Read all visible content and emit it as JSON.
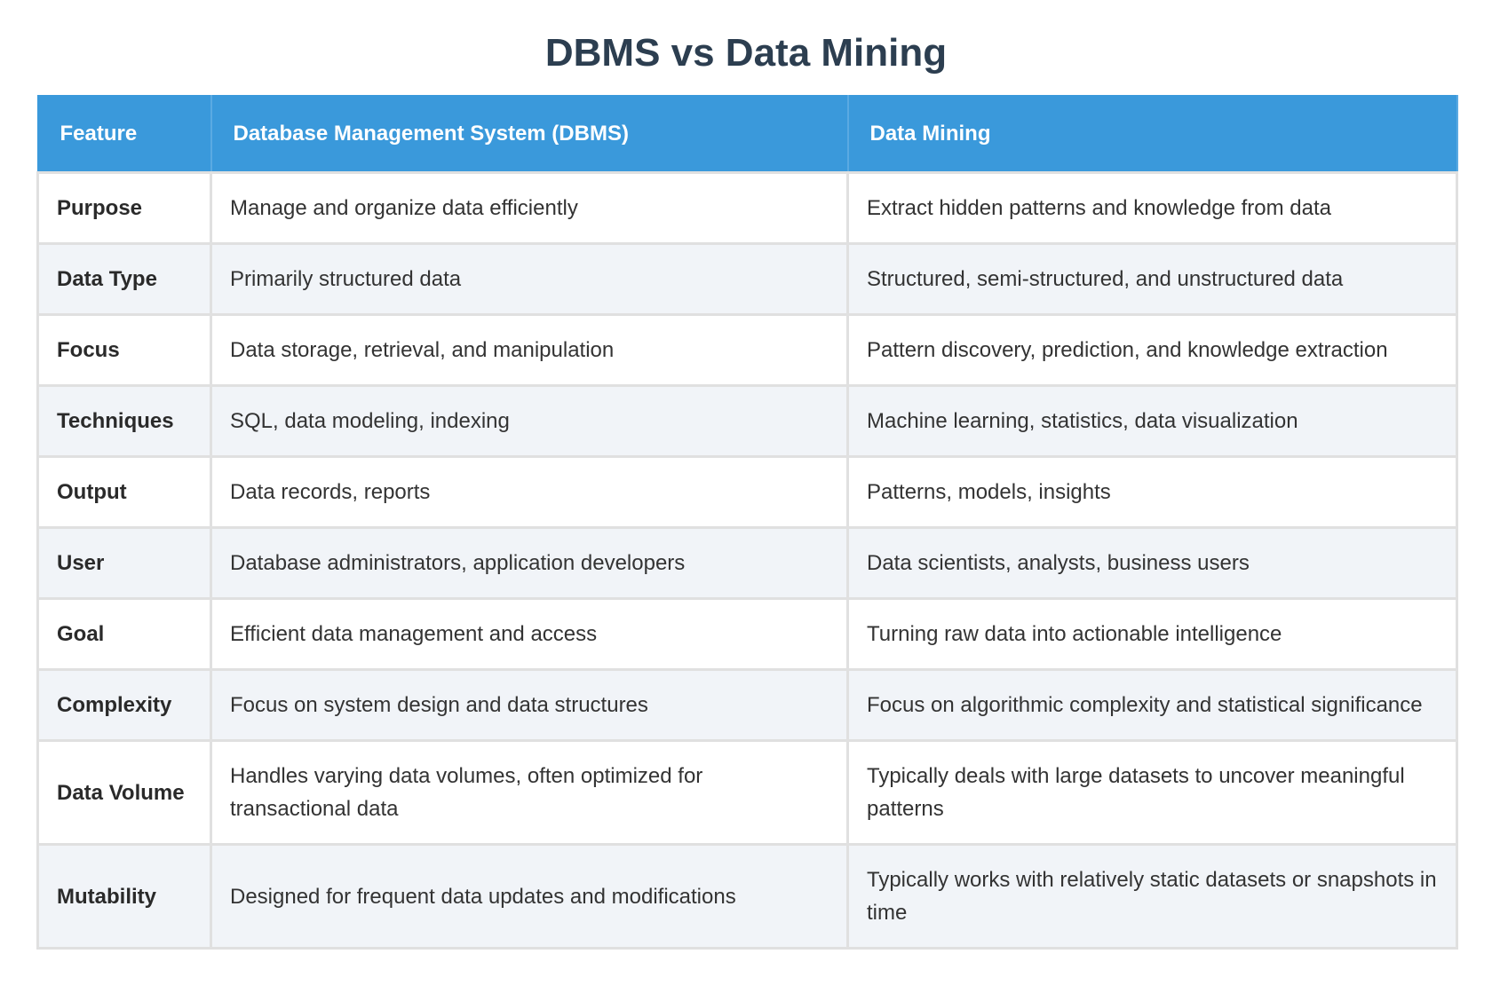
{
  "header": {
    "title": "DBMS vs Data Mining"
  },
  "table": {
    "columns": [
      "Feature",
      "Database Management System (DBMS)",
      "Data Mining"
    ],
    "rows": [
      [
        "Purpose",
        "Manage and organize data efficiently",
        "Extract hidden patterns and knowledge from data"
      ],
      [
        "Data Type",
        "Primarily structured data",
        "Structured, semi-structured, and unstructured data"
      ],
      [
        "Focus",
        "Data storage, retrieval, and manipulation",
        "Pattern discovery, prediction, and knowledge extraction"
      ],
      [
        "Techniques",
        "SQL, data modeling, indexing",
        "Machine learning, statistics, data visualization"
      ],
      [
        "Output",
        "Data records, reports",
        "Patterns, models, insights"
      ],
      [
        "User",
        "Database administrators, application developers",
        "Data scientists, analysts, business users"
      ],
      [
        "Goal",
        "Efficient data management and access",
        "Turning raw data into actionable intelligence"
      ],
      [
        "Complexity",
        "Focus on system design and data structures",
        "Focus on algorithmic complexity and statistical significance"
      ],
      [
        "Data Volume",
        "Handles varying data volumes, often optimized for transactional data",
        "Typically deals with large datasets to uncover meaningful patterns"
      ],
      [
        "Mutability",
        "Designed for frequent data updates and modifications",
        "Typically works with relatively static datasets or snapshots in time"
      ]
    ]
  }
}
